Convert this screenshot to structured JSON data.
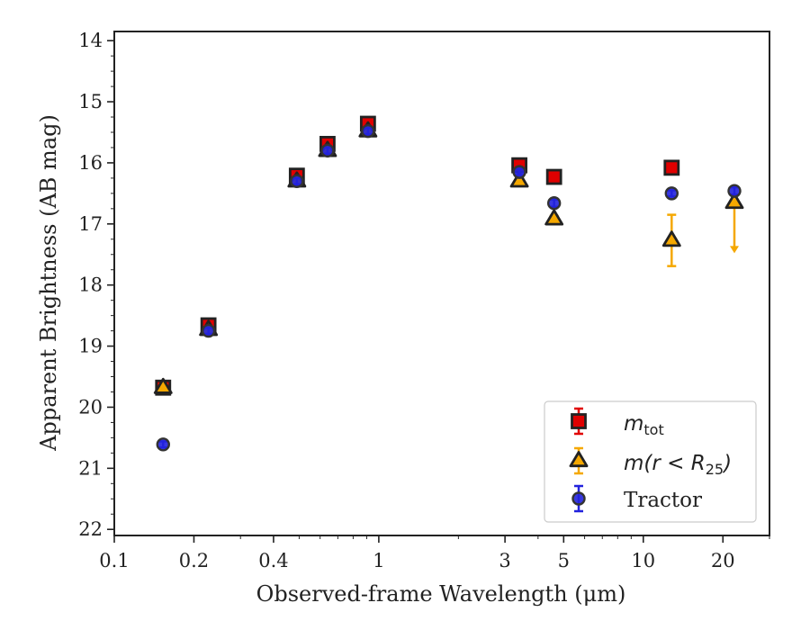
{
  "chart_data": {
    "type": "scatter",
    "xlabel": "Observed-frame Wavelength (μm)",
    "ylabel": "Apparent Brightness (AB mag)",
    "x_scale": "log",
    "xlim": [
      0.1,
      30
    ],
    "ylim": [
      22.1,
      13.85
    ],
    "y_inverted": true,
    "x_ticks": [
      {
        "value": 0.1,
        "label": "0.1"
      },
      {
        "value": 0.2,
        "label": "0.2"
      },
      {
        "value": 0.4,
        "label": "0.4"
      },
      {
        "value": 1,
        "label": "1"
      },
      {
        "value": 3,
        "label": "3"
      },
      {
        "value": 5,
        "label": "5"
      },
      {
        "value": 10,
        "label": "10"
      },
      {
        "value": 20,
        "label": "20"
      }
    ],
    "y_ticks": [
      {
        "value": 14,
        "label": "14"
      },
      {
        "value": 15,
        "label": "15"
      },
      {
        "value": 16,
        "label": "16"
      },
      {
        "value": 17,
        "label": "17"
      },
      {
        "value": 18,
        "label": "18"
      },
      {
        "value": 19,
        "label": "19"
      },
      {
        "value": 20,
        "label": "20"
      },
      {
        "value": 21,
        "label": "21"
      },
      {
        "value": 22,
        "label": "22"
      }
    ],
    "grid": false,
    "legend_position": "lower right",
    "series": [
      {
        "name": "m_tot",
        "marker": "square",
        "color": "#e00000",
        "points": [
          {
            "x": 0.153,
            "y": 19.68,
            "err": 0.05
          },
          {
            "x": 0.227,
            "y": 18.66,
            "err": 0.05
          },
          {
            "x": 0.49,
            "y": 16.21,
            "err": 0.05
          },
          {
            "x": 0.64,
            "y": 15.69,
            "err": 0.05
          },
          {
            "x": 0.91,
            "y": 15.36,
            "err": 0.05
          },
          {
            "x": 3.4,
            "y": 16.04,
            "err": 0.05
          },
          {
            "x": 4.6,
            "y": 16.23,
            "err": 0.05
          },
          {
            "x": 12.8,
            "y": 16.08,
            "err": 0.05
          }
        ]
      },
      {
        "name": "m(r < R_25)",
        "marker": "triangle",
        "color": "#f5a800",
        "points": [
          {
            "x": 0.153,
            "y": 19.68,
            "err": 0.05
          },
          {
            "x": 0.227,
            "y": 18.73,
            "err": 0.05
          },
          {
            "x": 0.49,
            "y": 16.3,
            "err": 0.05
          },
          {
            "x": 0.64,
            "y": 15.8,
            "err": 0.05
          },
          {
            "x": 0.91,
            "y": 15.48,
            "err": 0.05
          },
          {
            "x": 3.4,
            "y": 16.3,
            "err": 0.05
          },
          {
            "x": 4.6,
            "y": 16.92,
            "err": 0.05
          },
          {
            "x": 12.8,
            "y": 17.27,
            "err": 0.42
          },
          {
            "x": 22.1,
            "y": 16.65,
            "upper_limit_to": 17.45
          }
        ]
      },
      {
        "name": "Tractor",
        "marker": "circle",
        "color": "#2222dd",
        "points": [
          {
            "x": 0.153,
            "y": 20.61,
            "err": 0.05
          },
          {
            "x": 0.227,
            "y": 18.75,
            "err": 0.05
          },
          {
            "x": 0.49,
            "y": 16.3,
            "err": 0.05
          },
          {
            "x": 0.64,
            "y": 15.8,
            "err": 0.05
          },
          {
            "x": 0.91,
            "y": 15.48,
            "err": 0.05
          },
          {
            "x": 3.4,
            "y": 16.15,
            "err": 0.05
          },
          {
            "x": 4.6,
            "y": 16.66,
            "err": 0.06
          },
          {
            "x": 12.8,
            "y": 16.5,
            "err": 0.05
          },
          {
            "x": 22.1,
            "y": 16.46,
            "err": 0.06
          }
        ]
      }
    ],
    "legend": {
      "m_tot_base": "m",
      "m_tot_sub": "tot",
      "mr_prefix": "m",
      "mr_middle": "(r < R",
      "mr_sub": "25",
      "mr_suffix": ")",
      "tractor": "Tractor"
    }
  }
}
